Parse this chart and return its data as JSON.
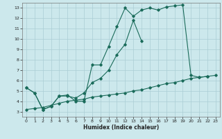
{
  "title": "",
  "xlabel": "Humidex (Indice chaleur)",
  "ylabel": "",
  "bg_color": "#cce8ec",
  "grid_color": "#aacdd4",
  "line_color": "#1a6b5a",
  "xlim": [
    -0.5,
    23.5
  ],
  "ylim": [
    2.5,
    13.5
  ],
  "xticks": [
    0,
    1,
    2,
    3,
    4,
    5,
    6,
    7,
    8,
    9,
    10,
    11,
    12,
    13,
    14,
    15,
    16,
    17,
    18,
    19,
    20,
    21,
    22,
    23
  ],
  "yticks": [
    3,
    4,
    5,
    6,
    7,
    8,
    9,
    10,
    11,
    12,
    13
  ],
  "line1_x": [
    0,
    1,
    2,
    3,
    4,
    5,
    6,
    7,
    8,
    9,
    10,
    11,
    12,
    13,
    14,
    15,
    16,
    17,
    18,
    19,
    20,
    21,
    22
  ],
  "line1_y": [
    5.3,
    4.8,
    3.2,
    3.5,
    4.5,
    4.6,
    4.0,
    4.0,
    7.5,
    7.5,
    9.3,
    11.2,
    13.0,
    12.2,
    12.8,
    13.0,
    12.8,
    13.1,
    13.2,
    13.3,
    6.5,
    6.3,
    6.4
  ],
  "line2_x": [
    0,
    1,
    2,
    3,
    4,
    5,
    6,
    7,
    8,
    9,
    10,
    11,
    12,
    13,
    14
  ],
  "line2_y": [
    5.3,
    4.8,
    3.2,
    3.5,
    4.5,
    4.5,
    4.3,
    4.8,
    5.8,
    6.2,
    7.0,
    8.5,
    9.5,
    11.8,
    9.8
  ],
  "line3_x": [
    0,
    1,
    2,
    3,
    4,
    5,
    6,
    7,
    8,
    9,
    10,
    11,
    12,
    13,
    14,
    15,
    16,
    17,
    18,
    19,
    20,
    21,
    22,
    23
  ],
  "line3_y": [
    3.2,
    3.3,
    3.4,
    3.6,
    3.8,
    4.0,
    4.1,
    4.2,
    4.4,
    4.5,
    4.6,
    4.7,
    4.8,
    5.0,
    5.1,
    5.3,
    5.5,
    5.7,
    5.8,
    6.0,
    6.2,
    6.3,
    6.4,
    6.5
  ]
}
